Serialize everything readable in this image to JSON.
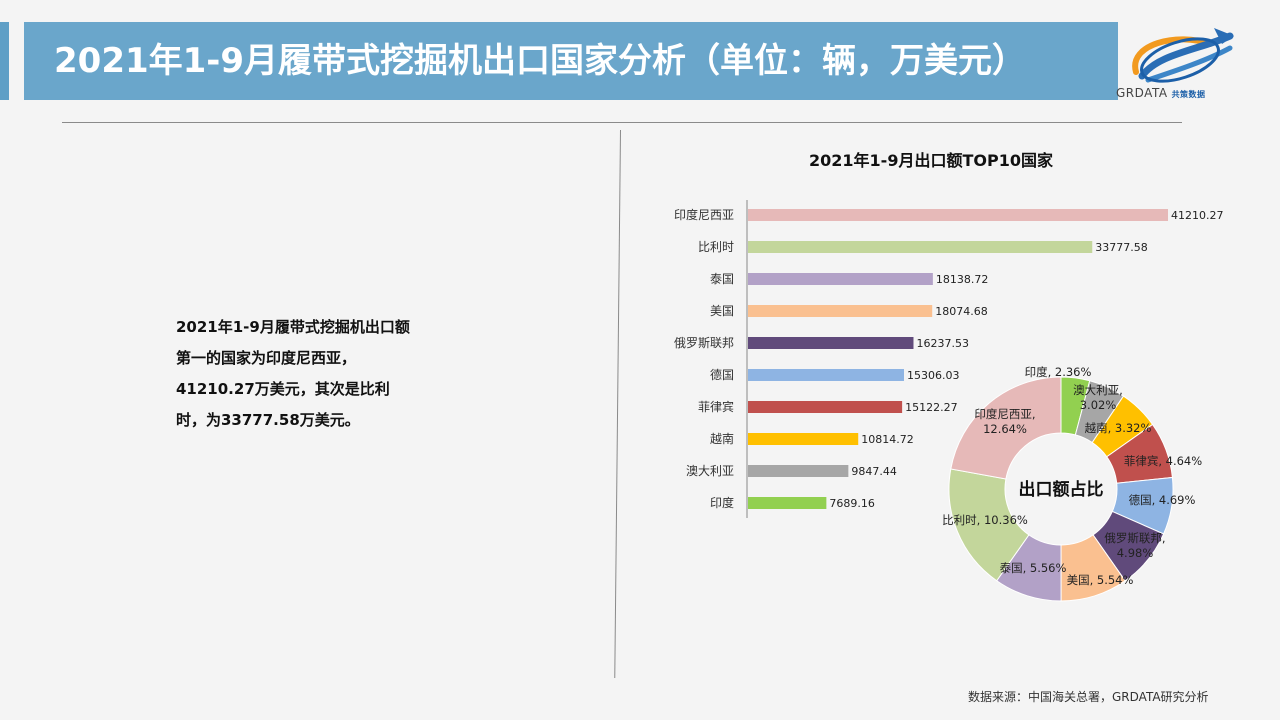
{
  "header": {
    "title": "2021年1-9月履带式挖掘机出口国家分析（单位：辆，万美元）",
    "logo_text": "GRDATA",
    "logo_subtext": "共策数据"
  },
  "summary": {
    "lines": [
      "2021年1-9月履带式挖掘机出口额",
      "第一的国家为印度尼西亚，",
      "41210.27万美元，其次是比利",
      "时，为33777.58万美元。"
    ]
  },
  "footer": {
    "source": "数据来源：中国海关总署，GRDATA研究分析"
  },
  "colors": {
    "title_bar": "#6aa6cb",
    "series": [
      "#e6b9b8",
      "#c3d69b",
      "#b2a1c7",
      "#fac090",
      "#604a7b",
      "#8eb4e3",
      "#c0504d",
      "#ffc000",
      "#a6a6a6",
      "#92d050"
    ]
  },
  "chart_data": [
    {
      "type": "bar",
      "orientation": "horizontal",
      "title": "2021年1-9月出口额TOP10国家",
      "categories": [
        "印度尼西亚",
        "比利时",
        "泰国",
        "美国",
        "俄罗斯联邦",
        "德国",
        "菲律宾",
        "越南",
        "澳大利亚",
        "印度"
      ],
      "values": [
        41210.27,
        33777.58,
        18138.72,
        18074.68,
        16237.53,
        15306.03,
        15122.27,
        10814.72,
        9847.44,
        7689.16
      ],
      "value_labels": [
        "41210.27",
        "33777.58",
        "18138.72",
        "18074.68",
        "16237.53",
        "15306.03",
        "15122.27",
        "10814.72",
        "9847.44",
        "7689.16"
      ],
      "xlim": [
        0,
        41210.27
      ],
      "grid": false
    },
    {
      "type": "pie",
      "donut": true,
      "center_label": "出口额占比",
      "categories": [
        "印度",
        "澳大利亚",
        "越南",
        "菲律宾",
        "德国",
        "俄罗斯联邦",
        "美国",
        "泰国",
        "比利时",
        "印度尼西亚"
      ],
      "values": [
        2.36,
        3.02,
        3.32,
        4.64,
        4.69,
        4.98,
        5.54,
        5.56,
        10.36,
        12.64
      ],
      "value_labels": [
        "2.36%",
        "3.02%",
        "3.32%",
        "4.64%",
        "4.69%",
        "4.98%",
        "5.54%",
        "5.56%",
        "10.36%",
        "12.64%"
      ],
      "slice_labels": [
        "印度, 2.36%",
        "澳大利亚, 3.02%",
        "越南, 3.32%",
        "菲律宾, 4.64%",
        "德国, 4.69%",
        "俄罗斯联邦, 4.98%",
        "美国, 5.54%",
        "泰国, 5.56%",
        "比利时, 10.36%",
        "印度尼西亚, 12.64%"
      ]
    }
  ]
}
